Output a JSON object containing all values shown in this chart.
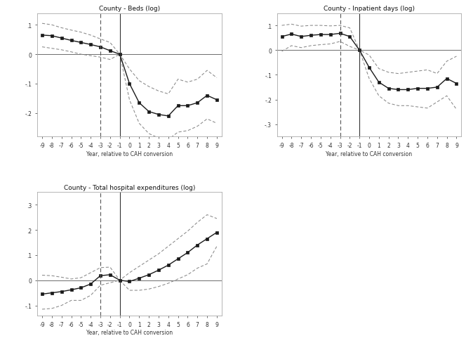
{
  "x": [
    -9,
    -8,
    -7,
    -6,
    -5,
    -4,
    -3,
    -2,
    -1,
    0,
    1,
    2,
    3,
    4,
    5,
    6,
    7,
    8,
    9
  ],
  "beds_main": [
    0.065,
    0.063,
    0.055,
    0.047,
    0.04,
    0.033,
    0.025,
    0.012,
    0.0,
    -0.1,
    -0.165,
    -0.195,
    -0.205,
    -0.21,
    -0.175,
    -0.175,
    -0.165,
    -0.14,
    -0.155
  ],
  "beds_upper": [
    0.105,
    0.1,
    0.09,
    0.082,
    0.075,
    0.065,
    0.052,
    0.04,
    0.0,
    -0.05,
    -0.09,
    -0.11,
    -0.125,
    -0.135,
    -0.085,
    -0.095,
    -0.085,
    -0.055,
    -0.08
  ],
  "beds_lower": [
    0.025,
    0.02,
    0.015,
    0.008,
    0.0,
    -0.005,
    -0.01,
    -0.018,
    0.0,
    -0.155,
    -0.235,
    -0.27,
    -0.285,
    -0.29,
    -0.265,
    -0.26,
    -0.245,
    -0.22,
    -0.235
  ],
  "inp_main": [
    0.055,
    0.065,
    0.055,
    0.06,
    0.063,
    0.063,
    0.068,
    0.055,
    0.0,
    -0.07,
    -0.13,
    -0.155,
    -0.16,
    -0.16,
    -0.155,
    -0.155,
    -0.15,
    -0.115,
    -0.135
  ],
  "inp_upper": [
    0.1,
    0.105,
    0.097,
    0.1,
    0.1,
    0.098,
    0.1,
    0.09,
    0.0,
    -0.02,
    -0.075,
    -0.09,
    -0.095,
    -0.09,
    -0.085,
    -0.08,
    -0.095,
    -0.045,
    -0.025
  ],
  "inp_lower": [
    -0.005,
    0.018,
    0.01,
    0.018,
    0.022,
    0.025,
    0.035,
    0.015,
    0.0,
    -0.115,
    -0.185,
    -0.215,
    -0.225,
    -0.225,
    -0.23,
    -0.235,
    -0.21,
    -0.185,
    -0.24
  ],
  "exp_main": [
    -0.055,
    -0.05,
    -0.045,
    -0.038,
    -0.03,
    -0.015,
    0.018,
    0.022,
    0.0,
    -0.005,
    0.008,
    0.022,
    0.04,
    0.06,
    0.085,
    0.11,
    0.14,
    0.165,
    0.19
  ],
  "exp_upper": [
    0.02,
    0.018,
    0.012,
    0.005,
    0.01,
    0.03,
    0.05,
    0.052,
    0.0,
    0.03,
    0.055,
    0.08,
    0.105,
    0.135,
    0.165,
    0.195,
    0.23,
    0.26,
    0.245
  ],
  "exp_lower": [
    -0.115,
    -0.112,
    -0.1,
    -0.08,
    -0.08,
    -0.06,
    -0.02,
    -0.01,
    0.0,
    -0.04,
    -0.04,
    -0.035,
    -0.025,
    -0.012,
    0.005,
    0.022,
    0.048,
    0.065,
    0.135
  ],
  "vline_dashed": -3,
  "vline_solid": -1,
  "beds_ylim": [
    -0.28,
    0.14
  ],
  "beds_yticks": [
    -0.2,
    -0.1,
    0.0,
    0.1
  ],
  "beds_yticklabels": [
    "-.2",
    "-.1",
    "0",
    ".1"
  ],
  "inp_ylim": [
    -0.35,
    0.15
  ],
  "inp_yticks": [
    -0.3,
    -0.2,
    -0.1,
    0.0,
    0.1
  ],
  "inp_yticklabels": [
    "-.3",
    "-.2",
    "-.1",
    "0",
    ".1"
  ],
  "exp_ylim": [
    -0.14,
    0.35
  ],
  "exp_yticks": [
    -0.1,
    0.0,
    0.1,
    0.2,
    0.3
  ],
  "exp_yticklabels": [
    "-.1",
    "0",
    ".1",
    ".2",
    ".3"
  ],
  "xlabel": "Year, relative to CAH conversion",
  "title1": "County - Beds (log)",
  "title2": "County - Inpatient days (log)",
  "title3": "County - Total hospital expenditures (log)",
  "main_color": "#1a1a1a",
  "ci_color": "#888888",
  "bg_color": "#ffffff",
  "spine_color": "#aaaaaa",
  "hline_color": "#555555",
  "vline_dash_color": "#555555",
  "vline_solid_color": "#333333"
}
